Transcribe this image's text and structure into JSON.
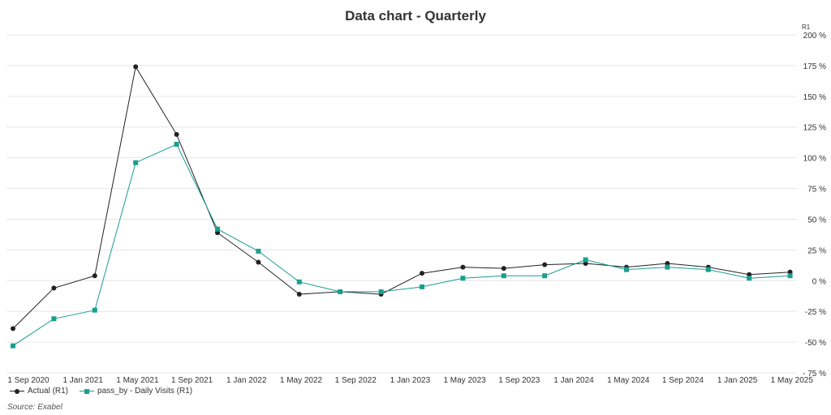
{
  "chart_data": {
    "type": "line",
    "title": "Data chart - Quarterly",
    "axis_unit_label": "R1",
    "y_axis_position": "right",
    "ylim": [
      -75,
      200
    ],
    "y_ticks": [
      200,
      175,
      150,
      125,
      100,
      75,
      50,
      25,
      0,
      -25,
      -50,
      -75
    ],
    "y_tick_labels": [
      "200 %",
      "175 %",
      "150 %",
      "125 %",
      "100 %",
      "75 %",
      "50 %",
      "25 %",
      "0 %",
      "-25 %",
      "-50 %",
      "- 75 %"
    ],
    "x": [
      "Sep 2020",
      "Dec 2020",
      "Mar 2021",
      "Jun 2021",
      "Sep 2021",
      "Dec 2021",
      "Mar 2022",
      "Jun 2022",
      "Sep 2022",
      "Dec 2022",
      "Mar 2023",
      "Jun 2023",
      "Sep 2023",
      "Dec 2023",
      "Mar 2024",
      "Jun 2024",
      "Sep 2024",
      "Dec 2024",
      "Mar 2025",
      "Jun 2025"
    ],
    "x_tick_labels": [
      "1 Sep 2020",
      "1 Jan 2021",
      "1 May 2021",
      "1 Sep 2021",
      "1 Jan 2022",
      "1 May 2022",
      "1 Sep 2022",
      "1 Jan 2023",
      "1 May 2023",
      "1 Sep 2023",
      "1 Jan 2024",
      "1 May 2024",
      "1 Sep 2024",
      "1 Jan 2025",
      "1 May 2025"
    ],
    "grid": "horizontal",
    "legend_position": "bottom-left",
    "series": [
      {
        "name": "Actual (R1)",
        "color": "#222222",
        "marker": "circle",
        "values": [
          -39,
          -6,
          4,
          174,
          119,
          39,
          15,
          -11,
          -9,
          -11,
          6,
          11,
          10,
          13,
          14,
          11,
          14,
          11,
          5,
          7
        ]
      },
      {
        "name": "pass_by - Daily Visits (R1)",
        "color": "#1a9e8f",
        "marker": "square",
        "values": [
          -53,
          -31,
          -24,
          96,
          111,
          42,
          24,
          -1,
          -9,
          -9,
          -5,
          2,
          4,
          4,
          17,
          9,
          11,
          9,
          2,
          4
        ]
      }
    ]
  },
  "source_text": "Source: Exabel"
}
